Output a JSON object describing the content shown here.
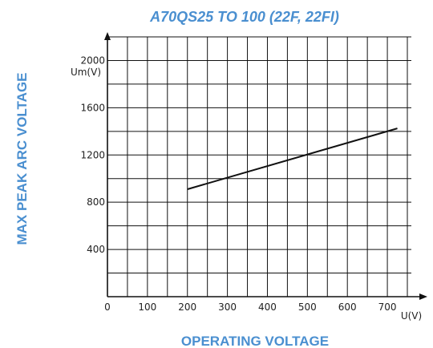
{
  "colors": {
    "title": "#4a8fd0",
    "grid": "#111111",
    "series": "#111111",
    "text": "#222222"
  },
  "chart_data": {
    "type": "line",
    "title": "A70QS25 TO 100 (22F, 22FI)",
    "xlabel": "OPERATING VOLTAGE",
    "ylabel": "MAX PEAK ARC VOLTAGE",
    "x_unit": "U(V)",
    "y_unit": "Um(V)",
    "xlim": [
      0,
      760
    ],
    "ylim": [
      0,
      2200
    ],
    "x_ticks": [
      0,
      100,
      200,
      300,
      400,
      500,
      600,
      700
    ],
    "x_tick_labels": [
      "0",
      "100",
      "200",
      "300",
      "400",
      "500",
      "600",
      "700"
    ],
    "y_ticks": [
      400,
      800,
      1200,
      1600,
      2000
    ],
    "y_tick_labels": [
      "400",
      "800",
      "1200",
      "1600",
      "2000"
    ],
    "x_minor_step": 50,
    "y_minor_step": 200,
    "grid": true,
    "series": [
      {
        "x": [
          200,
          725
        ],
        "y": [
          910,
          1425
        ]
      }
    ]
  }
}
